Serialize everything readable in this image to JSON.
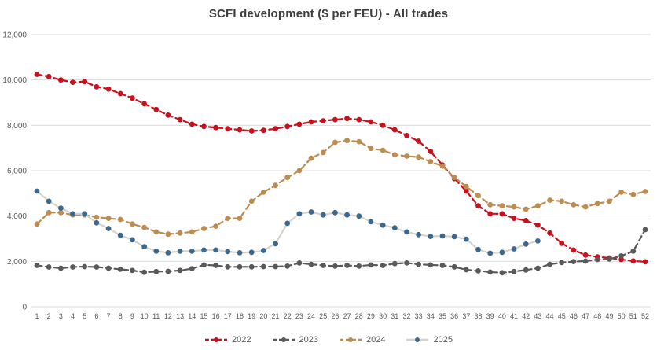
{
  "chart_data": {
    "type": "line",
    "title": "SCFI development ($ per FEU) - All trades",
    "xlabel": "",
    "ylabel": "",
    "x_unit": "week number",
    "ylim": [
      0,
      12000
    ],
    "grid": "horizontal",
    "legend_position": "bottom-center",
    "axis_text_color": "#595959",
    "gridline_color": "#dcdcdc",
    "weeks": [
      1,
      2,
      3,
      4,
      5,
      6,
      7,
      8,
      9,
      10,
      11,
      12,
      13,
      14,
      15,
      16,
      17,
      18,
      19,
      20,
      21,
      22,
      23,
      24,
      25,
      26,
      27,
      28,
      29,
      30,
      31,
      32,
      33,
      34,
      35,
      36,
      37,
      38,
      39,
      40,
      41,
      42,
      43,
      44,
      45,
      46,
      47,
      48,
      49,
      50,
      51,
      52
    ],
    "y_ticks": [
      {
        "value": 0,
        "label": "0"
      },
      {
        "value": 2000,
        "label": "2,000"
      },
      {
        "value": 4000,
        "label": "4,000"
      },
      {
        "value": 6000,
        "label": "6,000"
      },
      {
        "value": 8000,
        "label": "8,000"
      },
      {
        "value": 10000,
        "label": "10,000"
      },
      {
        "value": 12000,
        "label": "12,000"
      }
    ],
    "series": [
      {
        "name": "2022",
        "color": "#c8111e",
        "line_color": "#c8111e",
        "dashed": true,
        "values": [
          10250,
          10150,
          10000,
          9900,
          9930,
          9700,
          9600,
          9400,
          9200,
          8950,
          8700,
          8450,
          8250,
          8050,
          7950,
          7900,
          7850,
          7800,
          7750,
          7780,
          7850,
          7950,
          8050,
          8150,
          8200,
          8250,
          8300,
          8250,
          8150,
          8000,
          7800,
          7550,
          7300,
          6850,
          6250,
          5650,
          5100,
          4450,
          4100,
          4100,
          3900,
          3800,
          3600,
          3250,
          2800,
          2500,
          2280,
          2200,
          2150,
          2080,
          2020,
          1980
        ]
      },
      {
        "name": "2023",
        "color": "#595959",
        "line_color": "#595959",
        "dashed": true,
        "values": [
          1820,
          1750,
          1700,
          1750,
          1770,
          1750,
          1700,
          1650,
          1600,
          1520,
          1550,
          1560,
          1600,
          1680,
          1840,
          1820,
          1760,
          1760,
          1760,
          1770,
          1770,
          1790,
          1930,
          1870,
          1820,
          1790,
          1820,
          1790,
          1840,
          1820,
          1900,
          1930,
          1870,
          1840,
          1820,
          1760,
          1630,
          1580,
          1530,
          1500,
          1550,
          1620,
          1700,
          1870,
          1950,
          1990,
          2010,
          2080,
          2100,
          2240,
          2450,
          3400
        ]
      },
      {
        "name": "2024",
        "color": "#bb8d51",
        "line_color": "#bb8d51",
        "dashed": true,
        "values": [
          3650,
          4150,
          4150,
          4050,
          4050,
          3950,
          3900,
          3850,
          3650,
          3500,
          3300,
          3200,
          3250,
          3300,
          3450,
          3550,
          3900,
          3900,
          4650,
          5050,
          5350,
          5700,
          6000,
          6550,
          6800,
          7250,
          7330,
          7280,
          6980,
          6900,
          6700,
          6640,
          6600,
          6400,
          6200,
          5700,
          5300,
          4900,
          4500,
          4450,
          4400,
          4300,
          4450,
          4700,
          4650,
          4500,
          4400,
          4550,
          4650,
          5050,
          4950,
          5080
        ]
      },
      {
        "name": "2025",
        "color": "#3d688e",
        "line_color": "#d6d3cc",
        "dashed": false,
        "values": [
          5100,
          4650,
          4350,
          4100,
          4100,
          3700,
          3450,
          3150,
          2950,
          2650,
          2450,
          2380,
          2450,
          2450,
          2500,
          2500,
          2430,
          2380,
          2400,
          2480,
          2780,
          3680,
          4100,
          4180,
          4050,
          4150,
          4050,
          4000,
          3750,
          3600,
          3480,
          3300,
          3180,
          3100,
          3120,
          3090,
          2980,
          2520,
          2360,
          2400,
          2550,
          2760,
          2900
        ]
      }
    ]
  }
}
